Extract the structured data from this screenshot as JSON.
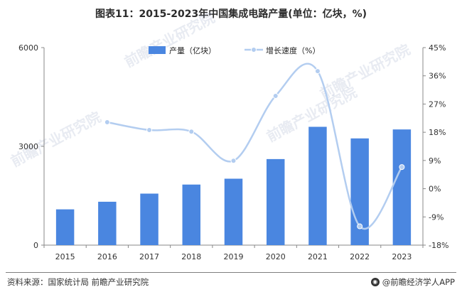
{
  "chart_data": {
    "type": "bar",
    "title": "图表11：2015-2023年中国集成电路产量(单位：亿块，%)",
    "categories": [
      "2015",
      "2016",
      "2017",
      "2018",
      "2019",
      "2020",
      "2021",
      "2022",
      "2023"
    ],
    "series": [
      {
        "name": "产量（亿块）",
        "type": "bar",
        "axis": "left",
        "color": "#4a86e0",
        "values": [
          1087,
          1318,
          1565,
          1840,
          2018,
          2614,
          3594,
          3242,
          3514
        ]
      },
      {
        "name": "增长速度（%）",
        "type": "line",
        "axis": "right",
        "color": "#b3cdf0",
        "values": [
          null,
          21.2,
          18.7,
          18.2,
          8.9,
          29.6,
          37.5,
          -12.0,
          6.9
        ]
      }
    ],
    "y_left": {
      "ylim": [
        0,
        6000
      ],
      "ticks": [
        "0",
        "3000",
        "6000"
      ]
    },
    "y_right": {
      "ylim": [
        -18,
        45
      ],
      "ticks": [
        "-18%",
        "-9%",
        "0%",
        "9%",
        "18%",
        "27%",
        "36%",
        "45%"
      ]
    },
    "legend": "top-center",
    "grid": false
  },
  "footer": {
    "source": "资料来源：国家统计局 前瞻产业研究院",
    "credit": "@前瞻经济学人APP"
  },
  "watermark": {
    "text": "前瞻产业研究院"
  }
}
